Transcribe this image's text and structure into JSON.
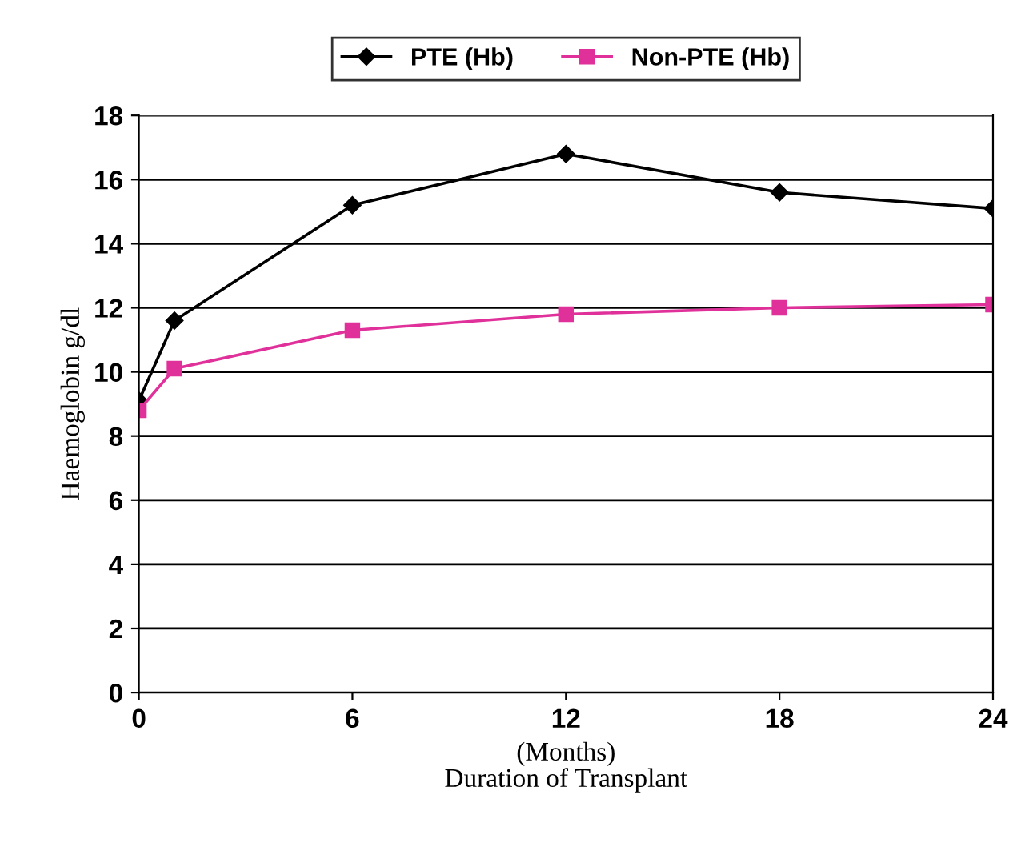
{
  "chart_data": {
    "type": "line",
    "xlabel": "(Months)\nDuration of Transplant",
    "ylabel": "Haemoglobin g/dl",
    "x": [
      0,
      1,
      6,
      12,
      18,
      24
    ],
    "series": [
      {
        "name": "PTE (Hb)",
        "color": "#000000",
        "marker": "diamond",
        "values": [
          9.1,
          11.6,
          15.2,
          16.8,
          15.6,
          15.1
        ]
      },
      {
        "name": "Non-PTE (Hb)",
        "color": "#e0309a",
        "marker": "square",
        "values": [
          8.8,
          10.1,
          11.3,
          11.8,
          12.0,
          12.1
        ]
      }
    ],
    "xlim": [
      0,
      24
    ],
    "xticks": [
      0,
      6,
      12,
      18,
      24
    ],
    "ylim": [
      0,
      18
    ],
    "yticks": [
      0,
      2,
      4,
      6,
      8,
      10,
      12,
      14,
      16,
      18
    ],
    "grid": "y",
    "legend": "top"
  }
}
